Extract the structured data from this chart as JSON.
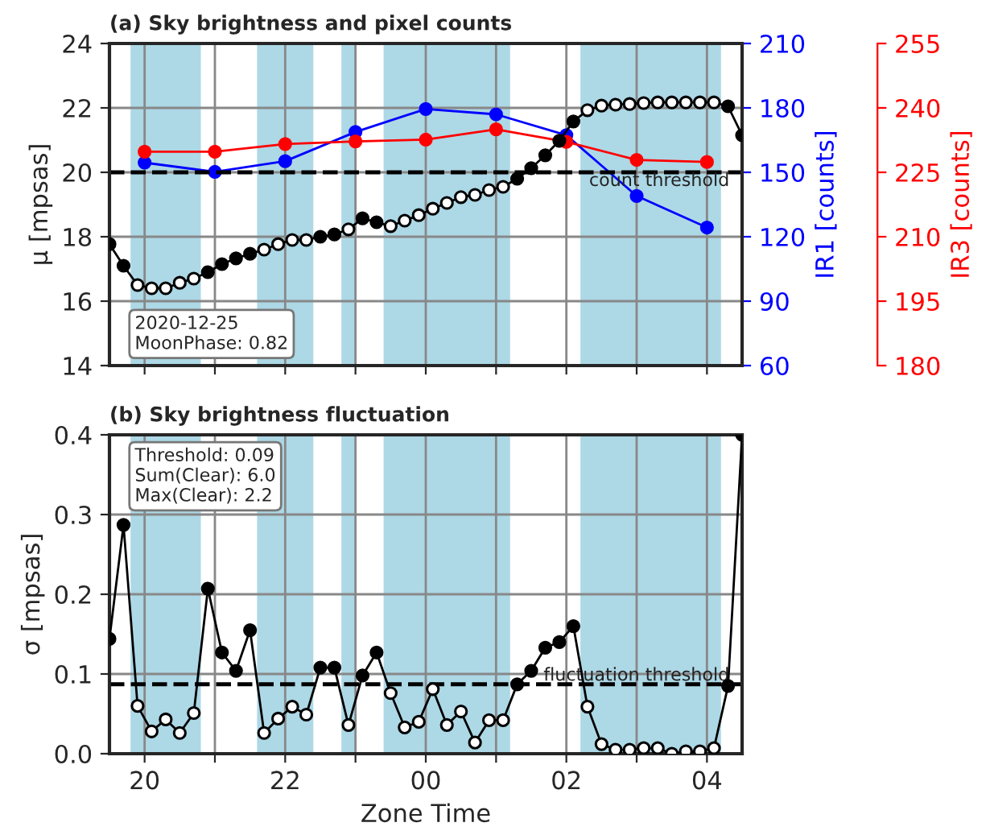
{
  "chart_data": [
    {
      "type": "line",
      "title": "(a) Sky brightness and pixel counts",
      "ylabel": "μ [mpsas]",
      "y2label": "IR1 [counts]",
      "y3label": "IR3 [counts]",
      "xlim": [
        "2020-12-25T19:30",
        "2020-12-26T04:30"
      ],
      "xticks": [
        {
          "value": "2020-12-25T20:00",
          "label": null
        },
        {
          "value": "2020-12-25T21:00",
          "label": null
        },
        {
          "value": "2020-12-25T22:00",
          "label": null
        },
        {
          "value": "2020-12-25T23:00",
          "label": null
        },
        {
          "value": "2020-12-26T00:00",
          "label": null
        },
        {
          "value": "2020-12-26T01:00",
          "label": null
        },
        {
          "value": "2020-12-26T02:00",
          "label": null
        },
        {
          "value": "2020-12-26T03:00",
          "label": null
        },
        {
          "value": "2020-12-26T04:00",
          "label": null
        }
      ],
      "ylim": [
        14,
        24
      ],
      "yticks": [
        14,
        16,
        18,
        20,
        22,
        24
      ],
      "y2lim": [
        60,
        210
      ],
      "y2ticks": [
        60,
        90,
        120,
        150,
        180,
        210
      ],
      "y3lim": [
        180,
        255
      ],
      "y3ticks": [
        180,
        195,
        210,
        225,
        240,
        255
      ],
      "tick_labels": "y",
      "grid": true,
      "marker": "circle",
      "bands": [
        {
          "axis": "x",
          "from": "2020-12-25T19:48",
          "to": "2020-12-25T20:48",
          "color": "#add8e6"
        },
        {
          "axis": "x",
          "from": "2020-12-25T21:36",
          "to": "2020-12-25T22:24",
          "color": "#add8e6"
        },
        {
          "axis": "x",
          "from": "2020-12-25T22:48",
          "to": "2020-12-25T23:00",
          "color": "#add8e6"
        },
        {
          "axis": "x",
          "from": "2020-12-25T23:24",
          "to": "2020-12-26T01:12",
          "color": "#add8e6"
        },
        {
          "axis": "x",
          "from": "2020-12-26T02:12",
          "to": "2020-12-26T04:12",
          "color": "#add8e6"
        }
      ],
      "ref_lines": [
        {
          "axis": "y",
          "value": 20,
          "label": "count threshold",
          "line_style": "dashed",
          "color": "#000000"
        }
      ],
      "annotations": [
        "2020-12-25\nMoonPhase: 0.82"
      ],
      "series": [
        {
          "color": "#000000",
          "x": [
            "2020-12-25T19:30",
            "2020-12-25T19:42",
            "2020-12-25T19:54",
            "2020-12-25T20:06",
            "2020-12-25T20:18",
            "2020-12-25T20:30",
            "2020-12-25T20:42",
            "2020-12-25T20:54",
            "2020-12-25T21:06",
            "2020-12-25T21:18",
            "2020-12-25T21:30",
            "2020-12-25T21:42",
            "2020-12-25T21:54",
            "2020-12-25T22:06",
            "2020-12-25T22:18",
            "2020-12-25T22:30",
            "2020-12-25T22:42",
            "2020-12-25T22:54",
            "2020-12-25T23:06",
            "2020-12-25T23:18",
            "2020-12-25T23:30",
            "2020-12-25T23:42",
            "2020-12-25T23:54",
            "2020-12-26T00:06",
            "2020-12-26T00:18",
            "2020-12-26T00:30",
            "2020-12-26T00:42",
            "2020-12-26T00:54",
            "2020-12-26T01:06",
            "2020-12-26T01:18",
            "2020-12-26T01:30",
            "2020-12-26T01:42",
            "2020-12-26T01:54",
            "2020-12-26T02:06",
            "2020-12-26T02:18",
            "2020-12-26T02:30",
            "2020-12-26T02:42",
            "2020-12-26T02:54",
            "2020-12-26T03:06",
            "2020-12-26T03:18",
            "2020-12-26T03:30",
            "2020-12-26T03:42",
            "2020-12-26T03:54",
            "2020-12-26T04:06",
            "2020-12-26T04:18",
            "2020-12-26T04:30"
          ],
          "values": [
            17.77,
            17.1,
            16.5,
            16.4,
            16.4,
            16.57,
            16.7,
            16.9,
            17.15,
            17.33,
            17.47,
            17.6,
            17.77,
            17.9,
            17.9,
            18.0,
            18.07,
            18.23,
            18.57,
            18.45,
            18.33,
            18.5,
            18.67,
            18.87,
            19.05,
            19.23,
            19.3,
            19.45,
            19.55,
            19.8,
            20.13,
            20.53,
            20.98,
            21.58,
            21.93,
            22.07,
            22.1,
            22.12,
            22.15,
            22.17,
            22.17,
            22.17,
            22.17,
            22.17,
            22.05,
            21.15
          ],
          "colors": [
            "#000000",
            "#000000",
            "#ffffff",
            "#ffffff",
            "#ffffff",
            "#ffffff",
            "#ffffff",
            "#000000",
            "#000000",
            "#000000",
            "#000000",
            "#ffffff",
            "#ffffff",
            "#ffffff",
            "#ffffff",
            "#000000",
            "#000000",
            "#ffffff",
            "#000000",
            "#000000",
            "#ffffff",
            "#ffffff",
            "#ffffff",
            "#ffffff",
            "#ffffff",
            "#ffffff",
            "#ffffff",
            "#ffffff",
            "#ffffff",
            "#000000",
            "#000000",
            "#000000",
            "#000000",
            "#000000",
            "#ffffff",
            "#ffffff",
            "#ffffff",
            "#ffffff",
            "#ffffff",
            "#ffffff",
            "#ffffff",
            "#ffffff",
            "#ffffff",
            "#ffffff",
            "#000000",
            "#000000"
          ]
        },
        {
          "color": "#0000ff",
          "axis": "y2",
          "x": [
            "2020-12-25T20:00",
            "2020-12-25T21:00",
            "2020-12-25T22:00",
            "2020-12-25T23:00",
            "2020-12-26T00:00",
            "2020-12-26T01:00",
            "2020-12-26T02:00",
            "2020-12-26T03:00",
            "2020-12-26T04:00"
          ],
          "values": [
            154.5,
            150.2,
            155.2,
            168.8,
            179.5,
            177,
            167.3,
            139,
            124.3
          ]
        },
        {
          "color": "#ff0000",
          "axis": "y3",
          "x": [
            "2020-12-25T20:00",
            "2020-12-25T21:00",
            "2020-12-25T22:00",
            "2020-12-25T23:00",
            "2020-12-26T00:00",
            "2020-12-26T01:00",
            "2020-12-26T02:00",
            "2020-12-26T03:00",
            "2020-12-26T04:00"
          ],
          "values": [
            229.8,
            229.8,
            231.6,
            232.2,
            232.6,
            235,
            232.1,
            227.9,
            227.4
          ]
        }
      ]
    },
    {
      "type": "line",
      "title": "(b) Sky brightness fluctuation",
      "xlabel": "Zone Time",
      "ylabel": "σ [mpsas]",
      "xlim": [
        "2020-12-25T19:30",
        "2020-12-26T04:30"
      ],
      "xticks": [
        {
          "value": "2020-12-25T20:00",
          "label": "20"
        },
        {
          "value": "2020-12-25T21:00",
          "label": null
        },
        {
          "value": "2020-12-25T22:00",
          "label": "22"
        },
        {
          "value": "2020-12-25T23:00",
          "label": null
        },
        {
          "value": "2020-12-26T00:00",
          "label": "00"
        },
        {
          "value": "2020-12-26T01:00",
          "label": null
        },
        {
          "value": "2020-12-26T02:00",
          "label": "02"
        },
        {
          "value": "2020-12-26T03:00",
          "label": null
        },
        {
          "value": "2020-12-26T04:00",
          "label": "04"
        }
      ],
      "ylim": [
        0,
        0.4
      ],
      "yticks": [
        {
          "value": 0,
          "label": "0.0"
        },
        0.1,
        0.2,
        0.3,
        0.4
      ],
      "grid": true,
      "marker": "circle",
      "bands": [
        {
          "axis": "x",
          "from": "2020-12-25T19:48",
          "to": "2020-12-25T20:48",
          "color": "#add8e6"
        },
        {
          "axis": "x",
          "from": "2020-12-25T21:36",
          "to": "2020-12-25T22:24",
          "color": "#add8e6"
        },
        {
          "axis": "x",
          "from": "2020-12-25T22:48",
          "to": "2020-12-25T23:00",
          "color": "#add8e6"
        },
        {
          "axis": "x",
          "from": "2020-12-25T23:24",
          "to": "2020-12-26T01:12",
          "color": "#add8e6"
        },
        {
          "axis": "x",
          "from": "2020-12-26T02:12",
          "to": "2020-12-26T04:12",
          "color": "#add8e6"
        }
      ],
      "ref_lines": [
        {
          "axis": "y",
          "value": 0.087,
          "label": "fluctuation threshold",
          "line_style": "dashed",
          "color": "#000000"
        }
      ],
      "annotations": [
        "Threshold: 0.09\nSum(Clear): 6.0\nMax(Clear): 2.2"
      ],
      "series": [
        {
          "color": "#000000",
          "x": [
            "2020-12-25T19:30",
            "2020-12-25T19:42",
            "2020-12-25T19:54",
            "2020-12-25T20:06",
            "2020-12-25T20:18",
            "2020-12-25T20:30",
            "2020-12-25T20:42",
            "2020-12-25T20:54",
            "2020-12-25T21:06",
            "2020-12-25T21:18",
            "2020-12-25T21:30",
            "2020-12-25T21:42",
            "2020-12-25T21:54",
            "2020-12-25T22:06",
            "2020-12-25T22:18",
            "2020-12-25T22:30",
            "2020-12-25T22:42",
            "2020-12-25T22:54",
            "2020-12-25T23:06",
            "2020-12-25T23:18",
            "2020-12-25T23:30",
            "2020-12-25T23:42",
            "2020-12-25T23:54",
            "2020-12-26T00:06",
            "2020-12-26T00:18",
            "2020-12-26T00:30",
            "2020-12-26T00:42",
            "2020-12-26T00:54",
            "2020-12-26T01:06",
            "2020-12-26T01:18",
            "2020-12-26T01:30",
            "2020-12-26T01:42",
            "2020-12-26T01:54",
            "2020-12-26T02:06",
            "2020-12-26T02:18",
            "2020-12-26T02:30",
            "2020-12-26T02:42",
            "2020-12-26T02:54",
            "2020-12-26T03:06",
            "2020-12-26T03:18",
            "2020-12-26T03:30",
            "2020-12-26T03:42",
            "2020-12-26T03:54",
            "2020-12-26T04:06",
            "2020-12-26T04:18",
            "2020-12-26T04:30"
          ],
          "values": [
            0.144,
            0.287,
            0.06,
            0.028,
            0.043,
            0.026,
            0.051,
            0.207,
            0.127,
            0.104,
            0.155,
            0.026,
            0.044,
            0.059,
            0.049,
            0.108,
            0.108,
            0.036,
            0.098,
            0.127,
            0.076,
            0.033,
            0.04,
            0.081,
            0.036,
            0.053,
            0.014,
            0.042,
            0.042,
            0.087,
            0.104,
            0.133,
            0.14,
            0.16,
            0.059,
            0.012,
            0.005,
            0.005,
            0.007,
            0.007,
            0.0,
            0.003,
            0.003,
            0.007,
            0.085,
            0.4
          ],
          "colors": [
            "#000000",
            "#000000",
            "#ffffff",
            "#ffffff",
            "#ffffff",
            "#ffffff",
            "#ffffff",
            "#000000",
            "#000000",
            "#000000",
            "#000000",
            "#ffffff",
            "#ffffff",
            "#ffffff",
            "#ffffff",
            "#000000",
            "#000000",
            "#ffffff",
            "#000000",
            "#000000",
            "#ffffff",
            "#ffffff",
            "#ffffff",
            "#ffffff",
            "#ffffff",
            "#ffffff",
            "#ffffff",
            "#ffffff",
            "#ffffff",
            "#000000",
            "#000000",
            "#000000",
            "#000000",
            "#000000",
            "#ffffff",
            "#ffffff",
            "#ffffff",
            "#ffffff",
            "#ffffff",
            "#ffffff",
            "#ffffff",
            "#ffffff",
            "#ffffff",
            "#ffffff",
            "#000000",
            "#000000"
          ]
        }
      ]
    }
  ]
}
